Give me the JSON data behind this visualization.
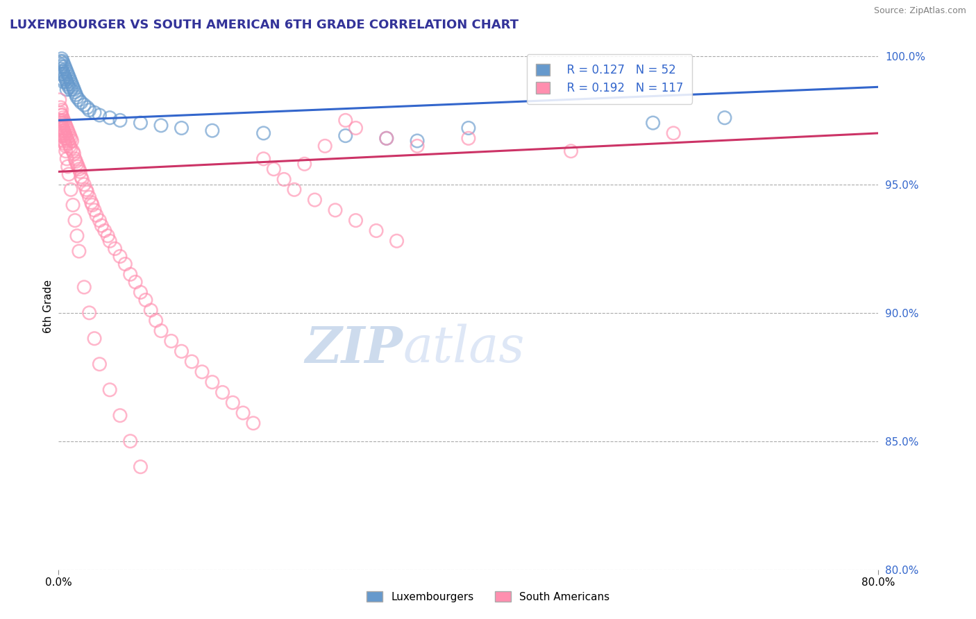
{
  "title": "LUXEMBOURGER VS SOUTH AMERICAN 6TH GRADE CORRELATION CHART",
  "source": "Source: ZipAtlas.com",
  "xlabel_luxembourgers": "Luxembourgers",
  "xlabel_south_americans": "South Americans",
  "ylabel": "6th Grade",
  "xmin": 0.0,
  "xmax": 0.8,
  "ymin": 0.8,
  "ymax": 1.005,
  "yticks": [
    0.8,
    0.85,
    0.9,
    0.95,
    1.0
  ],
  "ytick_labels": [
    "80.0%",
    "85.0%",
    "90.0%",
    "95.0%",
    "100.0%"
  ],
  "xtick_labels": [
    "0.0%",
    "80.0%"
  ],
  "blue_R": 0.127,
  "blue_N": 52,
  "pink_R": 0.192,
  "pink_N": 117,
  "blue_color": "#6699CC",
  "pink_color": "#FF8FAF",
  "blue_line_color": "#3366CC",
  "pink_line_color": "#CC3366",
  "blue_line_x": [
    0.0,
    0.8
  ],
  "blue_line_y": [
    0.975,
    0.988
  ],
  "pink_line_x": [
    0.0,
    0.8
  ],
  "pink_line_y": [
    0.955,
    0.97
  ],
  "blue_scatter_x": [
    0.001,
    0.002,
    0.002,
    0.003,
    0.003,
    0.003,
    0.004,
    0.004,
    0.004,
    0.005,
    0.005,
    0.005,
    0.006,
    0.006,
    0.007,
    0.007,
    0.008,
    0.008,
    0.008,
    0.009,
    0.009,
    0.01,
    0.01,
    0.011,
    0.012,
    0.012,
    0.013,
    0.014,
    0.015,
    0.016,
    0.017,
    0.018,
    0.02,
    0.022,
    0.025,
    0.028,
    0.03,
    0.035,
    0.04,
    0.05,
    0.06,
    0.08,
    0.1,
    0.12,
    0.15,
    0.2,
    0.28,
    0.32,
    0.35,
    0.4,
    0.58,
    0.65
  ],
  "blue_scatter_y": [
    0.997,
    0.998,
    0.995,
    0.999,
    0.996,
    0.993,
    0.998,
    0.994,
    0.991,
    0.997,
    0.993,
    0.99,
    0.996,
    0.992,
    0.995,
    0.991,
    0.994,
    0.99,
    0.987,
    0.993,
    0.989,
    0.992,
    0.988,
    0.991,
    0.99,
    0.987,
    0.989,
    0.988,
    0.987,
    0.986,
    0.985,
    0.984,
    0.983,
    0.982,
    0.981,
    0.98,
    0.979,
    0.978,
    0.977,
    0.976,
    0.975,
    0.974,
    0.973,
    0.972,
    0.971,
    0.97,
    0.969,
    0.968,
    0.967,
    0.972,
    0.974,
    0.976
  ],
  "pink_scatter_x": [
    0.001,
    0.001,
    0.002,
    0.002,
    0.002,
    0.003,
    0.003,
    0.003,
    0.004,
    0.004,
    0.005,
    0.005,
    0.005,
    0.006,
    0.006,
    0.007,
    0.007,
    0.008,
    0.008,
    0.009,
    0.009,
    0.01,
    0.01,
    0.011,
    0.011,
    0.012,
    0.012,
    0.013,
    0.014,
    0.015,
    0.016,
    0.017,
    0.018,
    0.019,
    0.02,
    0.021,
    0.022,
    0.023,
    0.025,
    0.027,
    0.028,
    0.03,
    0.032,
    0.033,
    0.035,
    0.037,
    0.04,
    0.042,
    0.045,
    0.048,
    0.05,
    0.055,
    0.06,
    0.065,
    0.07,
    0.075,
    0.08,
    0.085,
    0.09,
    0.095,
    0.1,
    0.11,
    0.12,
    0.13,
    0.14,
    0.15,
    0.16,
    0.17,
    0.18,
    0.19,
    0.2,
    0.21,
    0.22,
    0.23,
    0.25,
    0.27,
    0.29,
    0.31,
    0.33,
    0.003,
    0.003,
    0.004,
    0.005,
    0.006,
    0.007,
    0.008,
    0.009,
    0.01,
    0.012,
    0.014,
    0.016,
    0.018,
    0.02,
    0.025,
    0.03,
    0.035,
    0.04,
    0.05,
    0.06,
    0.07,
    0.08,
    0.001,
    0.002,
    0.003,
    0.004,
    0.005,
    0.006,
    0.007,
    0.4,
    0.5,
    0.6,
    0.35,
    0.28,
    0.32,
    0.29,
    0.26,
    0.24
  ],
  "pink_scatter_y": [
    0.975,
    0.972,
    0.978,
    0.974,
    0.97,
    0.977,
    0.973,
    0.969,
    0.976,
    0.972,
    0.975,
    0.971,
    0.967,
    0.974,
    0.97,
    0.973,
    0.969,
    0.972,
    0.968,
    0.971,
    0.967,
    0.97,
    0.966,
    0.969,
    0.965,
    0.968,
    0.964,
    0.967,
    0.963,
    0.962,
    0.96,
    0.959,
    0.958,
    0.957,
    0.956,
    0.955,
    0.953,
    0.952,
    0.95,
    0.948,
    0.947,
    0.945,
    0.943,
    0.942,
    0.94,
    0.938,
    0.936,
    0.934,
    0.932,
    0.93,
    0.928,
    0.925,
    0.922,
    0.919,
    0.915,
    0.912,
    0.908,
    0.905,
    0.901,
    0.897,
    0.893,
    0.889,
    0.885,
    0.881,
    0.877,
    0.873,
    0.869,
    0.865,
    0.861,
    0.857,
    0.96,
    0.956,
    0.952,
    0.948,
    0.944,
    0.94,
    0.936,
    0.932,
    0.928,
    0.979,
    0.975,
    0.972,
    0.969,
    0.966,
    0.963,
    0.96,
    0.957,
    0.954,
    0.948,
    0.942,
    0.936,
    0.93,
    0.924,
    0.91,
    0.9,
    0.89,
    0.88,
    0.87,
    0.86,
    0.85,
    0.84,
    0.983,
    0.98,
    0.977,
    0.974,
    0.971,
    0.968,
    0.965,
    0.968,
    0.963,
    0.97,
    0.965,
    0.975,
    0.968,
    0.972,
    0.965,
    0.958
  ]
}
